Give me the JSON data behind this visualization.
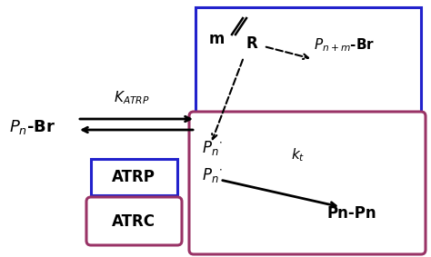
{
  "fig_width": 4.74,
  "fig_height": 2.83,
  "dpi": 100,
  "blue_color": "#2222cc",
  "purple_color": "#993366",
  "background": "#ffffff",
  "pn_br_text": "$P_n$-Br",
  "katrp_text": "$K_{ATRP}$",
  "pn_radical_top": "$P_n$$^{\\cdot}$",
  "pn_radical_bot": "$P_n$$^{\\cdot}$",
  "pnpn_text": "Pn-Pn",
  "pnm_text": "$P_{n+m}$-Br",
  "kt_text": "$k_t$",
  "atrp_label": "ATRP",
  "atrc_label": "ATRC"
}
